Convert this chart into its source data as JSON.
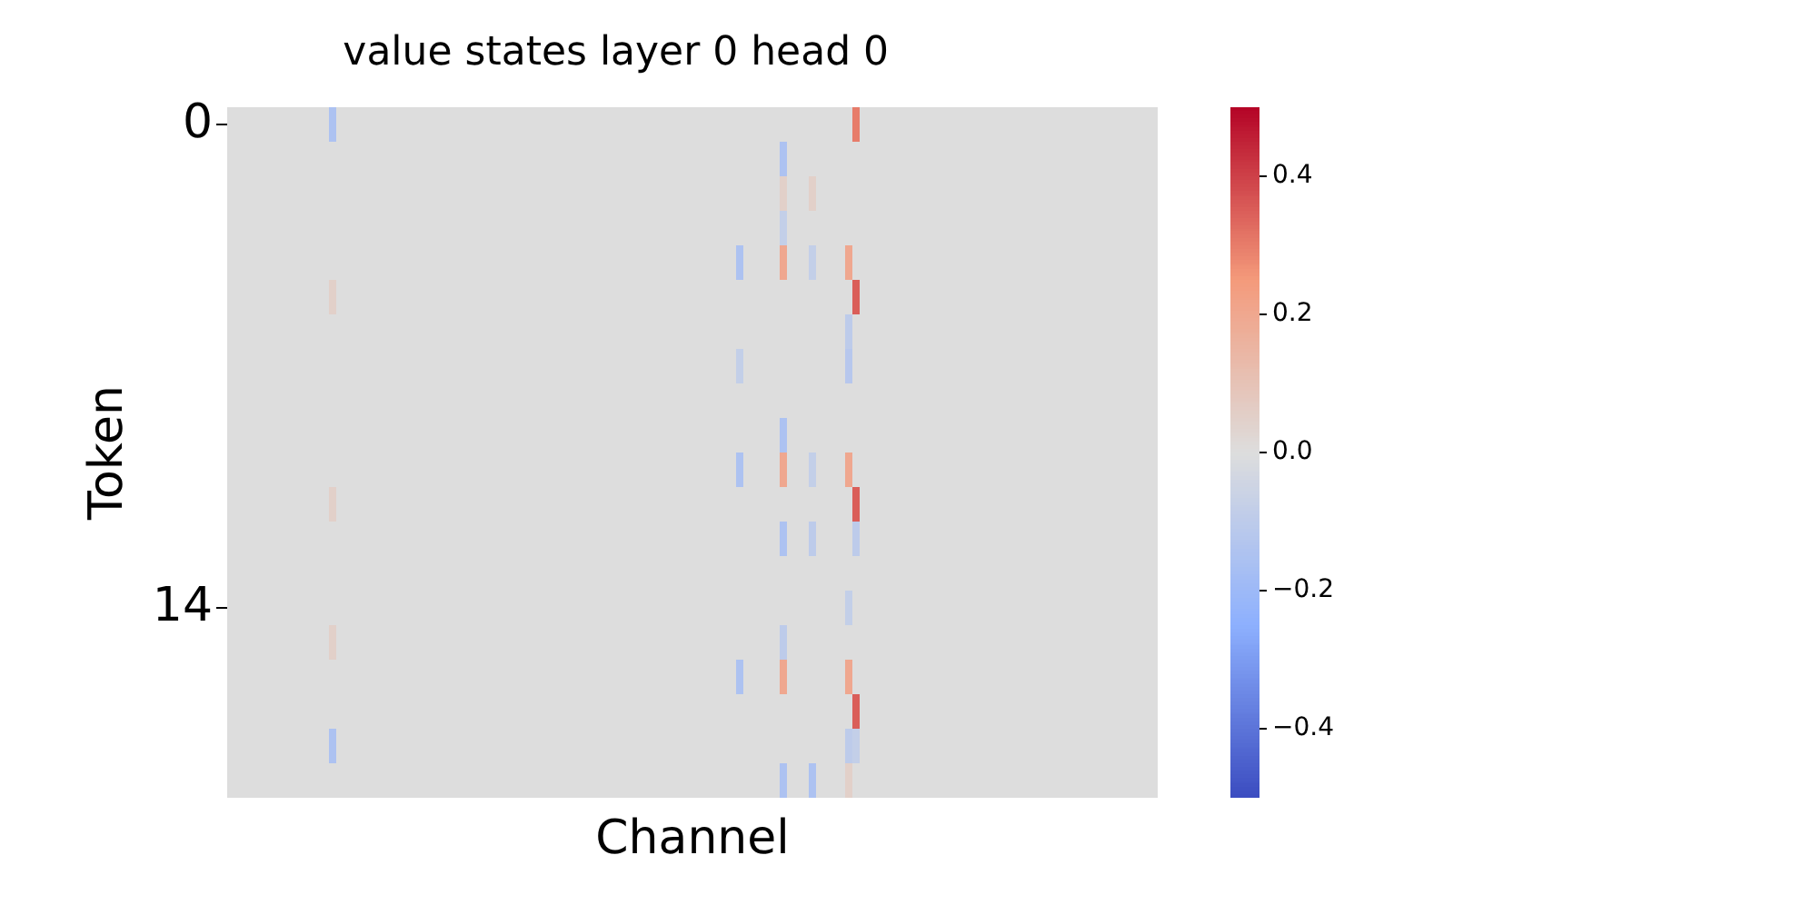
{
  "chart_data": {
    "type": "heatmap",
    "title": "value states layer 0 head 0",
    "xlabel": "Channel",
    "ylabel": "Token",
    "categories": [
      null,
      null,
      null,
      null,
      null,
      null,
      null,
      null,
      null,
      null,
      null,
      null,
      null,
      null,
      null,
      null,
      null,
      null,
      null,
      null,
      null,
      null,
      null,
      null,
      null,
      null,
      null,
      null,
      null,
      null,
      null,
      null,
      null,
      null,
      null,
      null,
      null,
      null,
      null,
      null,
      null,
      null,
      null,
      null,
      null,
      null,
      null,
      null,
      null,
      null,
      null,
      null,
      null,
      null,
      null,
      null,
      null,
      null,
      null,
      null,
      null,
      null,
      null,
      null,
      null,
      null,
      null,
      null,
      null,
      null,
      null,
      null,
      null,
      null,
      null,
      null,
      null,
      null,
      null,
      null,
      null,
      null,
      null,
      null,
      null,
      null,
      null,
      null,
      null,
      null,
      null,
      null,
      null,
      null,
      null,
      null,
      null,
      null,
      null,
      null,
      null,
      null,
      null,
      null,
      null,
      null,
      null,
      null,
      null,
      null,
      null,
      null,
      null,
      null,
      null,
      null,
      null,
      null,
      null,
      null,
      null,
      null,
      null,
      null,
      null,
      null,
      null,
      null
    ],
    "y_categories": [
      "0",
      null,
      null,
      null,
      null,
      null,
      null,
      null,
      null,
      null,
      null,
      null,
      null,
      null,
      "14",
      null,
      null,
      null,
      null,
      null
    ],
    "cells": [
      [
        0,
        0,
        0,
        0,
        0,
        0,
        0,
        0,
        0,
        0,
        0,
        0,
        0,
        0,
        -0.15,
        0,
        0,
        0,
        0,
        0,
        0,
        0,
        0,
        0,
        0,
        0,
        0,
        0,
        0,
        0,
        0,
        0,
        0,
        0,
        0,
        0,
        0,
        0,
        0,
        0,
        0,
        0,
        0,
        0,
        0,
        0,
        0,
        0,
        0,
        0,
        0,
        0,
        0,
        0,
        0,
        0,
        0,
        0,
        0,
        0,
        0,
        0,
        0,
        0,
        0,
        0,
        0,
        0,
        0,
        0,
        0,
        0,
        0,
        0,
        0,
        0,
        0,
        0,
        0,
        0,
        0,
        0,
        0,
        0,
        0,
        0,
        0.3,
        0,
        0,
        0,
        0,
        0,
        0,
        0,
        0,
        0,
        0,
        0,
        0,
        0,
        0,
        0,
        0,
        0,
        0,
        0,
        0,
        0,
        0,
        0,
        0,
        0,
        0,
        0,
        0,
        0,
        0,
        0,
        0,
        0,
        0,
        0,
        0,
        0,
        0,
        0,
        0,
        0
      ],
      [
        0,
        0,
        0,
        0,
        0,
        0,
        0,
        0,
        0,
        0,
        0,
        0,
        0,
        0,
        0,
        0,
        0,
        0,
        0,
        0,
        0,
        0,
        0,
        0,
        0,
        0,
        0,
        0,
        0,
        0,
        0,
        0,
        0,
        0,
        0,
        0,
        0,
        0,
        0,
        0,
        0,
        0,
        0,
        0,
        0,
        0,
        0,
        0,
        0,
        0,
        0,
        0,
        0,
        0,
        0,
        0,
        0,
        0,
        0,
        0,
        0,
        0,
        0,
        0,
        0,
        0,
        0,
        0,
        0,
        0,
        0,
        0,
        0,
        0,
        0,
        0,
        -0.15,
        0,
        0,
        0,
        0,
        0,
        0,
        0,
        0,
        0,
        0,
        0,
        0,
        0,
        0,
        0,
        0,
        0,
        0,
        0,
        0,
        0,
        0,
        0,
        0,
        0,
        0,
        0,
        0,
        0,
        0,
        0,
        0,
        0,
        0,
        0,
        0,
        0,
        0,
        0,
        0,
        0,
        0,
        0,
        0,
        0,
        0,
        0,
        0,
        0,
        0,
        0
      ],
      [
        0,
        0,
        0,
        0,
        0,
        0,
        0,
        0,
        0,
        0,
        0,
        0,
        0,
        0,
        0,
        0,
        0,
        0,
        0,
        0,
        0,
        0,
        0,
        0,
        0,
        0,
        0,
        0,
        0,
        0,
        0,
        0,
        0,
        0,
        0,
        0,
        0,
        0,
        0,
        0,
        0,
        0,
        0,
        0,
        0,
        0,
        0,
        0,
        0,
        0,
        0,
        0,
        0,
        0,
        0,
        0,
        0,
        0,
        0,
        0,
        0,
        0,
        0,
        0,
        0,
        0,
        0,
        0,
        0,
        0,
        0,
        0,
        0,
        0,
        0,
        0,
        0.05,
        0,
        0,
        0,
        0.05,
        0,
        0,
        0,
        0,
        0,
        0,
        0,
        0,
        0,
        0,
        0,
        0,
        0,
        0,
        0,
        0,
        0,
        0,
        0,
        0,
        0,
        0,
        0,
        0,
        0,
        0,
        0,
        0,
        0,
        0,
        0,
        0,
        0,
        0,
        0,
        0,
        0,
        0,
        0,
        0,
        0,
        0,
        0,
        0,
        0,
        0,
        0
      ],
      [
        0,
        0,
        0,
        0,
        0,
        0,
        0,
        0,
        0,
        0,
        0,
        0,
        0,
        0,
        0,
        0,
        0,
        0,
        0,
        0,
        0,
        0,
        0,
        0,
        0,
        0,
        0,
        0,
        0,
        0,
        0,
        0,
        0,
        0,
        0,
        0,
        0,
        0,
        0,
        0,
        0,
        0,
        0,
        0,
        0,
        0,
        0,
        0,
        0,
        0,
        0,
        0,
        0,
        0,
        0,
        0,
        0,
        0,
        0,
        0,
        0,
        0,
        0,
        0,
        0,
        0,
        0,
        0,
        0,
        0,
        0,
        0,
        0,
        0,
        0,
        0,
        -0.08,
        0,
        0,
        0,
        0,
        0,
        0,
        0,
        0,
        0,
        0,
        0,
        0,
        0,
        0,
        0,
        0,
        0,
        0,
        0,
        0,
        0,
        0,
        0,
        0,
        0,
        0,
        0,
        0,
        0,
        0,
        0,
        0,
        0,
        0,
        0,
        0,
        0,
        0,
        0,
        0,
        0,
        0,
        0,
        0,
        0,
        0,
        0,
        0,
        0,
        0,
        0
      ],
      [
        0,
        0,
        0,
        0,
        0,
        0,
        0,
        0,
        0,
        0,
        0,
        0,
        0,
        0,
        0,
        0,
        0,
        0,
        0,
        0,
        0,
        0,
        0,
        0,
        0,
        0,
        0,
        0,
        0,
        0,
        0,
        0,
        0,
        0,
        0,
        0,
        0,
        0,
        0,
        0,
        0,
        0,
        0,
        0,
        0,
        0,
        0,
        0,
        0,
        0,
        0,
        0,
        0,
        0,
        0,
        0,
        0,
        0,
        0,
        0,
        0,
        0,
        0,
        0,
        0,
        0,
        0,
        0,
        0,
        0,
        -0.15,
        0,
        0,
        0,
        0,
        0,
        0.2,
        0,
        0,
        0,
        -0.08,
        0,
        0,
        0,
        0,
        0.2,
        0,
        0,
        0,
        0,
        0,
        0,
        0,
        0,
        0,
        0,
        0,
        0,
        0,
        0,
        0,
        0,
        0,
        0,
        0,
        0,
        0,
        0,
        0,
        0,
        0,
        0,
        0,
        0,
        0,
        0,
        0,
        0,
        0,
        0,
        0,
        0,
        0,
        0,
        0,
        0,
        0,
        0
      ],
      [
        0,
        0,
        0,
        0,
        0,
        0,
        0,
        0,
        0,
        0,
        0,
        0,
        0,
        0,
        0.05,
        0,
        0,
        0,
        0,
        0,
        0,
        0,
        0,
        0,
        0,
        0,
        0,
        0,
        0,
        0,
        0,
        0,
        0,
        0,
        0,
        0,
        0,
        0,
        0,
        0,
        0,
        0,
        0,
        0,
        0,
        0,
        0,
        0,
        0,
        0,
        0,
        0,
        0,
        0,
        0,
        0,
        0,
        0,
        0,
        0,
        0,
        0,
        0,
        0,
        0,
        0,
        0,
        0,
        0,
        0,
        0,
        0,
        0,
        0,
        0,
        0,
        0,
        0,
        0,
        0,
        0,
        0,
        0,
        0,
        0,
        0,
        0.35,
        0,
        0,
        0,
        0,
        0,
        0,
        0,
        0,
        0,
        0,
        0,
        0,
        0,
        0,
        0,
        0,
        0,
        0,
        0,
        0,
        0,
        0,
        0,
        0,
        0,
        0,
        0,
        0,
        0,
        0,
        0,
        0,
        0,
        0,
        0,
        0,
        0,
        0,
        0,
        0,
        0
      ],
      [
        0,
        0,
        0,
        0,
        0,
        0,
        0,
        0,
        0,
        0,
        0,
        0,
        0,
        0,
        0,
        0,
        0,
        0,
        0,
        0,
        0,
        0,
        0,
        0,
        0,
        0,
        0,
        0,
        0,
        0,
        0,
        0,
        0,
        0,
        0,
        0,
        0,
        0,
        0,
        0,
        0,
        0,
        0,
        0,
        0,
        0,
        0,
        0,
        0,
        0,
        0,
        0,
        0,
        0,
        0,
        0,
        0,
        0,
        0,
        0,
        0,
        0,
        0,
        0,
        0,
        0,
        0,
        0,
        0,
        0,
        0,
        0,
        0,
        0,
        0,
        0,
        0,
        0,
        0,
        0,
        0,
        0,
        0,
        0,
        0,
        -0.1,
        0,
        0,
        0,
        0,
        0,
        0,
        0,
        0,
        0,
        0,
        0,
        0,
        0,
        0,
        0,
        0,
        0,
        0,
        0,
        0,
        0,
        0,
        0,
        0,
        0,
        0,
        0,
        0,
        0,
        0,
        0,
        0,
        0,
        0,
        0,
        0,
        0,
        0,
        0,
        0,
        0,
        0
      ],
      [
        0,
        0,
        0,
        0,
        0,
        0,
        0,
        0,
        0,
        0,
        0,
        0,
        0,
        0,
        0,
        0,
        0,
        0,
        0,
        0,
        0,
        0,
        0,
        0,
        0,
        0,
        0,
        0,
        0,
        0,
        0,
        0,
        0,
        0,
        0,
        0,
        0,
        0,
        0,
        0,
        0,
        0,
        0,
        0,
        0,
        0,
        0,
        0,
        0,
        0,
        0,
        0,
        0,
        0,
        0,
        0,
        0,
        0,
        0,
        0,
        0,
        0,
        0,
        0,
        0,
        0,
        0,
        0,
        0,
        0,
        -0.08,
        0,
        0,
        0,
        0,
        0,
        0,
        0,
        0,
        0,
        0,
        0,
        0,
        0,
        0,
        -0.12,
        0,
        0,
        0,
        0,
        0,
        0,
        0,
        0,
        0,
        0,
        0,
        0,
        0,
        0,
        0,
        0,
        0,
        0,
        0,
        0,
        0,
        0,
        0,
        0,
        0,
        0,
        0,
        0,
        0,
        0,
        0,
        0,
        0,
        0,
        0,
        0,
        0,
        0,
        0,
        0,
        0,
        0
      ],
      [
        0,
        0,
        0,
        0,
        0,
        0,
        0,
        0,
        0,
        0,
        0,
        0,
        0,
        0,
        0,
        0,
        0,
        0,
        0,
        0,
        0,
        0,
        0,
        0,
        0,
        0,
        0,
        0,
        0,
        0,
        0,
        0,
        0,
        0,
        0,
        0,
        0,
        0,
        0,
        0,
        0,
        0,
        0,
        0,
        0,
        0,
        0,
        0,
        0,
        0,
        0,
        0,
        0,
        0,
        0,
        0,
        0,
        0,
        0,
        0,
        0,
        0,
        0,
        0,
        0,
        0,
        0,
        0,
        0,
        0,
        0,
        0,
        0,
        0,
        0,
        0,
        0,
        0,
        0,
        0,
        0,
        0,
        0,
        0,
        0,
        0,
        0,
        0,
        0,
        0,
        0,
        0,
        0,
        0,
        0,
        0,
        0,
        0,
        0,
        0,
        0,
        0,
        0,
        0,
        0,
        0,
        0,
        0,
        0,
        0,
        0,
        0,
        0,
        0,
        0,
        0,
        0,
        0,
        0,
        0,
        0,
        0,
        0,
        0,
        0,
        0,
        0,
        0
      ],
      [
        0,
        0,
        0,
        0,
        0,
        0,
        0,
        0,
        0,
        0,
        0,
        0,
        0,
        0,
        0,
        0,
        0,
        0,
        0,
        0,
        0,
        0,
        0,
        0,
        0,
        0,
        0,
        0,
        0,
        0,
        0,
        0,
        0,
        0,
        0,
        0,
        0,
        0,
        0,
        0,
        0,
        0,
        0,
        0,
        0,
        0,
        0,
        0,
        0,
        0,
        0,
        0,
        0,
        0,
        0,
        0,
        0,
        0,
        0,
        0,
        0,
        0,
        0,
        0,
        0,
        0,
        0,
        0,
        0,
        0,
        0,
        0,
        0,
        0,
        0,
        0,
        -0.15,
        0,
        0,
        0,
        0,
        0,
        0,
        0,
        0,
        0,
        0,
        0,
        0,
        0,
        0,
        0,
        0,
        0,
        0,
        0,
        0,
        0,
        0,
        0,
        0,
        0,
        0,
        0,
        0,
        0,
        0,
        0,
        0,
        0,
        0,
        0,
        0,
        0,
        0,
        0,
        0,
        0,
        0,
        0,
        0,
        0,
        0,
        0,
        0,
        0,
        0,
        0
      ],
      [
        0,
        0,
        0,
        0,
        0,
        0,
        0,
        0,
        0,
        0,
        0,
        0,
        0,
        0,
        0,
        0,
        0,
        0,
        0,
        0,
        0,
        0,
        0,
        0,
        0,
        0,
        0,
        0,
        0,
        0,
        0,
        0,
        0,
        0,
        0,
        0,
        0,
        0,
        0,
        0,
        0,
        0,
        0,
        0,
        0,
        0,
        0,
        0,
        0,
        0,
        0,
        0,
        0,
        0,
        0,
        0,
        0,
        0,
        0,
        0,
        0,
        0,
        0,
        0,
        0,
        0,
        0,
        0,
        0,
        0,
        -0.15,
        0,
        0,
        0,
        0,
        0,
        0.2,
        0,
        0,
        0,
        -0.08,
        0,
        0,
        0,
        0,
        0.2,
        0,
        0,
        0,
        0,
        0,
        0,
        0,
        0,
        0,
        0,
        0,
        0,
        0,
        0,
        0,
        0,
        0,
        0,
        0,
        0,
        0,
        0,
        0,
        0,
        0,
        0,
        0,
        0,
        0,
        0,
        0,
        0,
        0,
        0,
        0,
        0,
        0,
        0,
        0,
        0,
        0,
        0
      ],
      [
        0,
        0,
        0,
        0,
        0,
        0,
        0,
        0,
        0,
        0,
        0,
        0,
        0,
        0,
        0.05,
        0,
        0,
        0,
        0,
        0,
        0,
        0,
        0,
        0,
        0,
        0,
        0,
        0,
        0,
        0,
        0,
        0,
        0,
        0,
        0,
        0,
        0,
        0,
        0,
        0,
        0,
        0,
        0,
        0,
        0,
        0,
        0,
        0,
        0,
        0,
        0,
        0,
        0,
        0,
        0,
        0,
        0,
        0,
        0,
        0,
        0,
        0,
        0,
        0,
        0,
        0,
        0,
        0,
        0,
        0,
        0,
        0,
        0,
        0,
        0,
        0,
        0,
        0,
        0,
        0,
        0,
        0,
        0,
        0,
        0,
        0,
        0.35,
        0,
        0,
        0,
        0,
        0,
        0,
        0,
        0,
        0,
        0,
        0,
        0,
        0,
        0,
        0,
        0,
        0,
        0,
        0,
        0,
        0,
        0,
        0,
        0,
        0,
        0,
        0,
        0,
        0,
        0,
        0,
        0,
        0,
        0,
        0,
        0,
        0,
        0,
        0,
        0,
        0
      ],
      [
        0,
        0,
        0,
        0,
        0,
        0,
        0,
        0,
        0,
        0,
        0,
        0,
        0,
        0,
        0,
        0,
        0,
        0,
        0,
        0,
        0,
        0,
        0,
        0,
        0,
        0,
        0,
        0,
        0,
        0,
        0,
        0,
        0,
        0,
        0,
        0,
        0,
        0,
        0,
        0,
        0,
        0,
        0,
        0,
        0,
        0,
        0,
        0,
        0,
        0,
        0,
        0,
        0,
        0,
        0,
        0,
        0,
        0,
        0,
        0,
        0,
        0,
        0,
        0,
        0,
        0,
        0,
        0,
        0,
        0,
        0,
        0,
        0,
        0,
        0,
        0,
        -0.15,
        0,
        0,
        0,
        -0.1,
        0,
        0,
        0,
        0,
        0,
        -0.1,
        0,
        0,
        0,
        0,
        0,
        0,
        0,
        0,
        0,
        0,
        0,
        0,
        0,
        0,
        0,
        0,
        0,
        0,
        0,
        0,
        0,
        0,
        0,
        0,
        0,
        0,
        0,
        0,
        0,
        0,
        0,
        0,
        0,
        0,
        0,
        0,
        0,
        0,
        0,
        0,
        0
      ],
      [
        0,
        0,
        0,
        0,
        0,
        0,
        0,
        0,
        0,
        0,
        0,
        0,
        0,
        0,
        0,
        0,
        0,
        0,
        0,
        0,
        0,
        0,
        0,
        0,
        0,
        0,
        0,
        0,
        0,
        0,
        0,
        0,
        0,
        0,
        0,
        0,
        0,
        0,
        0,
        0,
        0,
        0,
        0,
        0,
        0,
        0,
        0,
        0,
        0,
        0,
        0,
        0,
        0,
        0,
        0,
        0,
        0,
        0,
        0,
        0,
        0,
        0,
        0,
        0,
        0,
        0,
        0,
        0,
        0,
        0,
        0,
        0,
        0,
        0,
        0,
        0,
        0,
        0,
        0,
        0,
        0,
        0,
        0,
        0,
        0,
        0,
        0,
        0,
        0,
        0,
        0,
        0,
        0,
        0,
        0,
        0,
        0,
        0,
        0,
        0,
        0,
        0,
        0,
        0,
        0,
        0,
        0,
        0,
        0,
        0,
        0,
        0,
        0,
        0,
        0,
        0,
        0,
        0,
        0,
        0,
        0,
        0,
        0,
        0,
        0,
        0,
        0,
        0
      ],
      [
        0,
        0,
        0,
        0,
        0,
        0,
        0,
        0,
        0,
        0,
        0,
        0,
        0,
        0,
        0,
        0,
        0,
        0,
        0,
        0,
        0,
        0,
        0,
        0,
        0,
        0,
        0,
        0,
        0,
        0,
        0,
        0,
        0,
        0,
        0,
        0,
        0,
        0,
        0,
        0,
        0,
        0,
        0,
        0,
        0,
        0,
        0,
        0,
        0,
        0,
        0,
        0,
        0,
        0,
        0,
        0,
        0,
        0,
        0,
        0,
        0,
        0,
        0,
        0,
        0,
        0,
        0,
        0,
        0,
        0,
        0,
        0,
        0,
        0,
        0,
        0,
        0,
        0,
        0,
        0,
        0,
        0,
        0,
        0,
        0,
        -0.08,
        0,
        0,
        0,
        0,
        0,
        0,
        0,
        0,
        0,
        0,
        0,
        0,
        0,
        0,
        0,
        0,
        0,
        0,
        0,
        0,
        0,
        0,
        0,
        0,
        0,
        0,
        0,
        0,
        0,
        0,
        0,
        0,
        0,
        0,
        0,
        0,
        0,
        0,
        0,
        0,
        0,
        0
      ],
      [
        0,
        0,
        0,
        0,
        0,
        0,
        0,
        0,
        0,
        0,
        0,
        0,
        0,
        0,
        0.05,
        0,
        0,
        0,
        0,
        0,
        0,
        0,
        0,
        0,
        0,
        0,
        0,
        0,
        0,
        0,
        0,
        0,
        0,
        0,
        0,
        0,
        0,
        0,
        0,
        0,
        0,
        0,
        0,
        0,
        0,
        0,
        0,
        0,
        0,
        0,
        0,
        0,
        0,
        0,
        0,
        0,
        0,
        0,
        0,
        0,
        0,
        0,
        0,
        0,
        0,
        0,
        0,
        0,
        0,
        0,
        0,
        0,
        0,
        0,
        0,
        0,
        -0.1,
        0,
        0,
        0,
        0,
        0,
        0,
        0,
        0,
        0,
        0,
        0,
        0,
        0,
        0,
        0,
        0,
        0,
        0,
        0,
        0,
        0,
        0,
        0,
        0,
        0,
        0,
        0,
        0,
        0,
        0,
        0,
        0,
        0,
        0,
        0,
        0,
        0,
        0,
        0,
        0,
        0,
        0,
        0,
        0,
        0,
        0,
        0,
        0,
        0,
        0,
        0
      ],
      [
        0,
        0,
        0,
        0,
        0,
        0,
        0,
        0,
        0,
        0,
        0,
        0,
        0,
        0,
        0,
        0,
        0,
        0,
        0,
        0,
        0,
        0,
        0,
        0,
        0,
        0,
        0,
        0,
        0,
        0,
        0,
        0,
        0,
        0,
        0,
        0,
        0,
        0,
        0,
        0,
        0,
        0,
        0,
        0,
        0,
        0,
        0,
        0,
        0,
        0,
        0,
        0,
        0,
        0,
        0,
        0,
        0,
        0,
        0,
        0,
        0,
        0,
        0,
        0,
        0,
        0,
        0,
        0,
        0,
        0,
        -0.15,
        0,
        0,
        0,
        0,
        0,
        0.2,
        0,
        0,
        0,
        0,
        0,
        0,
        0,
        0,
        0.2,
        0,
        0,
        0,
        0,
        0,
        0,
        0,
        0,
        0,
        0,
        0,
        0,
        0,
        0,
        0,
        0,
        0,
        0,
        0,
        0,
        0,
        0,
        0,
        0,
        0,
        0,
        0,
        0,
        0,
        0,
        0,
        0,
        0,
        0,
        0,
        0,
        0,
        0,
        0,
        0,
        0,
        0
      ],
      [
        0,
        0,
        0,
        0,
        0,
        0,
        0,
        0,
        0,
        0,
        0,
        0,
        0,
        0,
        0,
        0,
        0,
        0,
        0,
        0,
        0,
        0,
        0,
        0,
        0,
        0,
        0,
        0,
        0,
        0,
        0,
        0,
        0,
        0,
        0,
        0,
        0,
        0,
        0,
        0,
        0,
        0,
        0,
        0,
        0,
        0,
        0,
        0,
        0,
        0,
        0,
        0,
        0,
        0,
        0,
        0,
        0,
        0,
        0,
        0,
        0,
        0,
        0,
        0,
        0,
        0,
        0,
        0,
        0,
        0,
        0,
        0,
        0,
        0,
        0,
        0,
        0,
        0,
        0,
        0,
        0,
        0,
        0,
        0,
        0,
        0,
        0.35,
        0,
        0,
        0,
        0,
        0,
        0,
        0,
        0,
        0,
        0,
        0,
        0,
        0,
        0,
        0,
        0,
        0,
        0,
        0,
        0,
        0,
        0,
        0,
        0,
        0,
        0,
        0,
        0,
        0,
        0,
        0,
        0,
        0,
        0,
        0,
        0,
        0,
        0,
        0,
        0,
        0
      ],
      [
        0,
        0,
        0,
        0,
        0,
        0,
        0,
        0,
        0,
        0,
        0,
        0,
        0,
        0,
        -0.15,
        0,
        0,
        0,
        0,
        0,
        0,
        0,
        0,
        0,
        0,
        0,
        0,
        0,
        0,
        0,
        0,
        0,
        0,
        0,
        0,
        0,
        0,
        0,
        0,
        0,
        0,
        0,
        0,
        0,
        0,
        0,
        0,
        0,
        0,
        0,
        0,
        0,
        0,
        0,
        0,
        0,
        0,
        0,
        0,
        0,
        0,
        0,
        0,
        0,
        0,
        0,
        0,
        0,
        0,
        0,
        0,
        0,
        0,
        0,
        0,
        0,
        0,
        0,
        0,
        0,
        0,
        0,
        0,
        0,
        0,
        -0.1,
        -0.08,
        0,
        0,
        0,
        0,
        0,
        0,
        0,
        0,
        0,
        0,
        0,
        0,
        0,
        0,
        0,
        0,
        0,
        0,
        0,
        0,
        0,
        0,
        0,
        0,
        0,
        0,
        0,
        0,
        0,
        0,
        0,
        0,
        0,
        0,
        0,
        0,
        0,
        0,
        0,
        0,
        0
      ],
      [
        0,
        0,
        0,
        0,
        0,
        0,
        0,
        0,
        0,
        0,
        0,
        0,
        0,
        0,
        0,
        0,
        0,
        0,
        0,
        0,
        0,
        0,
        0,
        0,
        0,
        0,
        0,
        0,
        0,
        0,
        0,
        0,
        0,
        0,
        0,
        0,
        0,
        0,
        0,
        0,
        0,
        0,
        0,
        0,
        0,
        0,
        0,
        0,
        0,
        0,
        0,
        0,
        0,
        0,
        0,
        0,
        0,
        0,
        0,
        0,
        0,
        0,
        0,
        0,
        0,
        0,
        0,
        0,
        0,
        0,
        0,
        0,
        0,
        0,
        0,
        0,
        -0.15,
        0,
        0,
        0,
        -0.15,
        0,
        0,
        0,
        0,
        0.05,
        0,
        0,
        0,
        0,
        0,
        0,
        0,
        0,
        0,
        0,
        0,
        0,
        0,
        0,
        0,
        0,
        0,
        0,
        0,
        0,
        0,
        0,
        0,
        0,
        0,
        0,
        0,
        0,
        0,
        0,
        0,
        0,
        0,
        0,
        0,
        0,
        0,
        0,
        0,
        0,
        0,
        0
      ]
    ],
    "clim": [
      -0.5,
      0.5
    ],
    "cticks": [
      {
        "value": -0.4,
        "label": "−0.4"
      },
      {
        "value": -0.2,
        "label": "−0.2"
      },
      {
        "value": 0,
        "label": "0.0"
      },
      {
        "value": 0.2,
        "label": "0.2"
      },
      {
        "value": 0.4,
        "label": "0.4"
      }
    ]
  }
}
